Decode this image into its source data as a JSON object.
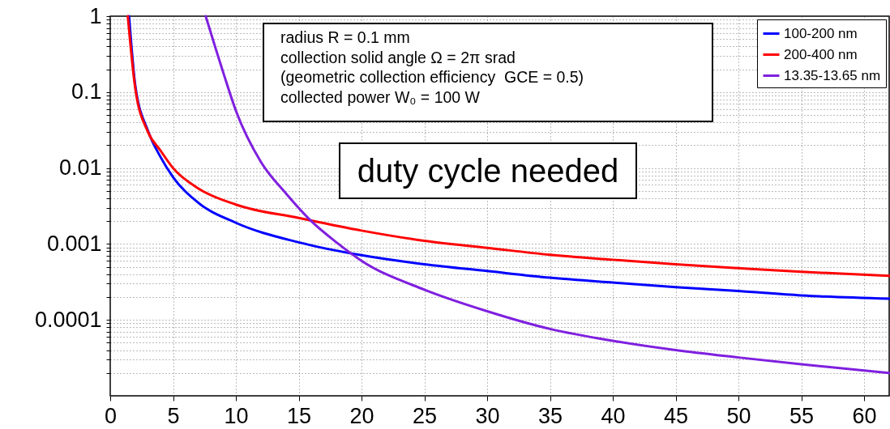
{
  "chart_data": {
    "type": "line",
    "log": "y",
    "grid": true,
    "legend": "top right",
    "line_style": "solid",
    "marker": "none",
    "xlim": [
      0,
      62
    ],
    "xticks": [
      0,
      5,
      10,
      15,
      20,
      25,
      30,
      35,
      40,
      45,
      50,
      55,
      60
    ],
    "ylim": [
      1e-05,
      1
    ],
    "yticks": [
      {
        "value": 2e-05,
        "label": null
      },
      {
        "value": 3e-05,
        "label": null
      },
      {
        "value": 4e-05,
        "label": null
      },
      {
        "value": 5e-05,
        "label": null
      },
      {
        "value": 6e-05,
        "label": null
      },
      {
        "value": 7e-05,
        "label": null
      },
      {
        "value": 8e-05,
        "label": null
      },
      {
        "value": 9e-05,
        "label": null
      },
      0.0001,
      {
        "value": 0.0002,
        "label": null
      },
      {
        "value": 0.0003,
        "label": null
      },
      {
        "value": 0.0004,
        "label": null
      },
      {
        "value": 0.0005,
        "label": null
      },
      {
        "value": 0.0006,
        "label": null
      },
      {
        "value": 0.0007,
        "label": null
      },
      {
        "value": 0.0008,
        "label": null
      },
      {
        "value": 0.0009,
        "label": null
      },
      0.001,
      {
        "value": 0.002,
        "label": null
      },
      {
        "value": 0.003,
        "label": null
      },
      {
        "value": 0.004,
        "label": null
      },
      {
        "value": 0.005,
        "label": null
      },
      {
        "value": 0.006,
        "label": null
      },
      {
        "value": 0.007,
        "label": null
      },
      {
        "value": 0.008,
        "label": null
      },
      {
        "value": 0.009,
        "label": null
      },
      0.01,
      {
        "value": 0.02,
        "label": null
      },
      {
        "value": 0.03,
        "label": null
      },
      {
        "value": 0.04,
        "label": null
      },
      {
        "value": 0.05,
        "label": null
      },
      {
        "value": 0.06,
        "label": null
      },
      {
        "value": 0.07,
        "label": null
      },
      {
        "value": 0.08,
        "label": null
      },
      {
        "value": 0.09,
        "label": null
      },
      0.1,
      {
        "value": 0.2,
        "label": null
      },
      {
        "value": 0.3,
        "label": null
      },
      {
        "value": 0.4,
        "label": null
      },
      {
        "value": 0.5,
        "label": null
      },
      {
        "value": 0.6,
        "label": null
      },
      {
        "value": 0.7,
        "label": null
      },
      {
        "value": 0.8,
        "label": null
      },
      {
        "value": 0.9,
        "label": null
      },
      1
    ],
    "annotations": [
      "radius R = 0.1 mm",
      "collection solid angle Ω = 2π srad",
      "(geometric collection efficiency  GCE = 0.5)",
      "collected power W₀ = 100 W",
      "duty cycle needed"
    ],
    "series": [
      {
        "name": "100-200 nm",
        "color": "#0000ff",
        "x": [
          1.5,
          2,
          3,
          4,
          5,
          7,
          10,
          15,
          20,
          25,
          30,
          35,
          40,
          45,
          50,
          55,
          62
        ],
        "values": [
          1,
          0.12,
          0.031,
          0.014,
          0.0076,
          0.0035,
          0.0019,
          0.00105,
          0.00071,
          0.00054,
          0.00044,
          0.00036,
          0.00031,
          0.00027,
          0.00024,
          0.00021,
          0.00019
        ]
      },
      {
        "name": "200-400 nm",
        "color": "#ff0000",
        "x": [
          1.4,
          2,
          3,
          4,
          5,
          7,
          10,
          15,
          20,
          25,
          30,
          35,
          40,
          45,
          50,
          55,
          62
        ],
        "values": [
          1,
          0.11,
          0.03,
          0.017,
          0.01,
          0.0054,
          0.0033,
          0.0022,
          0.0015,
          0.0011,
          0.00089,
          0.00072,
          0.00062,
          0.00054,
          0.00048,
          0.00043,
          0.00038
        ]
      },
      {
        "name": "13.35-13.65 nm",
        "color": "#7f1fdf",
        "x": [
          7.6,
          9,
          10,
          12,
          14,
          16,
          18,
          20,
          25,
          30,
          35,
          40,
          45,
          50,
          55,
          62
        ],
        "values": [
          1,
          0.18,
          0.057,
          0.012,
          0.0046,
          0.002,
          0.00105,
          0.0006,
          0.00025,
          0.00013,
          7.6e-05,
          5.3e-05,
          4e-05,
          3.2e-05,
          2.6e-05,
          2e-05
        ]
      }
    ]
  }
}
